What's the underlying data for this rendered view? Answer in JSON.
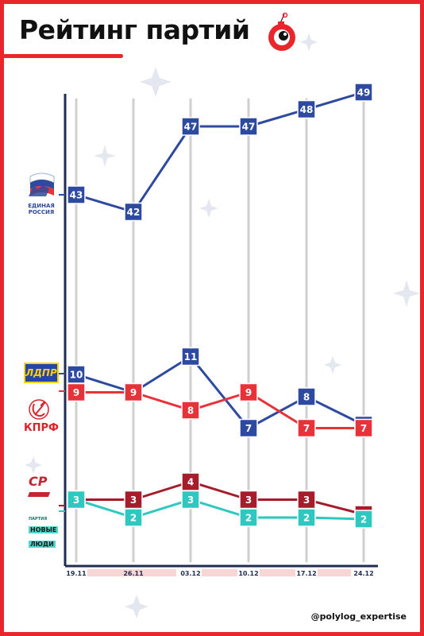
{
  "title": "Рейтинг партий",
  "handle": "@polylog_expertise",
  "colors": {
    "accent": "#e8262b",
    "er": "#2e4aa0",
    "ldpr": "#2e4aa0",
    "kprf": "#e8323a",
    "sr": "#a51d2a",
    "nl": "#2ec8c0",
    "axis": "#1f2d52",
    "grid": "#cfcfcf",
    "tick_band": "#f8d6d6"
  },
  "parties": {
    "er": {
      "line1": "ЕДИНАЯ",
      "line2": "РОССИЯ"
    },
    "ldpr": {
      "label": "ЛДПР"
    },
    "kprf": {
      "label": "КПРФ"
    },
    "sr": {
      "label": "СР"
    },
    "nl": {
      "line0": "ПАРТИЯ",
      "line1": "НОВЫЕ",
      "line2": "ЛЮДИ"
    }
  },
  "chart_data": {
    "type": "line",
    "categories": [
      "19.11",
      "26.11",
      "03.12",
      "10.12",
      "17.12",
      "24.12"
    ],
    "series": [
      {
        "key": "er",
        "values": [
          43,
          42,
          47,
          47,
          48,
          49
        ]
      },
      {
        "key": "ldpr",
        "values": [
          10,
          9,
          11,
          7,
          8,
          7
        ]
      },
      {
        "key": "kprf",
        "values": [
          9,
          9,
          8,
          9,
          7,
          7
        ]
      },
      {
        "key": "sr",
        "values": [
          3,
          3,
          4,
          3,
          3,
          2
        ]
      },
      {
        "key": "nl",
        "values": [
          3,
          2,
          3,
          2,
          2,
          2
        ]
      }
    ],
    "xlabel": "",
    "ylabel": "",
    "grid": true,
    "legend": "left"
  }
}
